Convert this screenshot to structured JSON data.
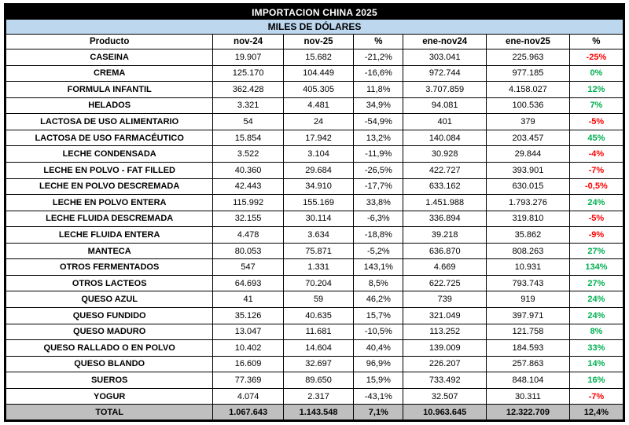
{
  "colors": {
    "positive": "#00B050",
    "negative": "#FF0000",
    "title_bg": "#000000",
    "subtitle_bg": "#BDD7EE",
    "total_bg": "#BFBFBF"
  },
  "chart_data": {
    "type": "table",
    "title": "IMPORTACION CHINA 2025",
    "subtitle": "MILES DE DÓLARES",
    "headers": [
      "Producto",
      "nov-24",
      "nov-25",
      "%",
      "ene-nov24",
      "ene-nov25",
      "%"
    ],
    "rows": [
      {
        "producto": "CASEINA",
        "nov24": "19.907",
        "nov25": "15.682",
        "pct1": "-21,2%",
        "ene_nov24": "303.041",
        "ene_nov25": "225.963",
        "pct2": "-25%"
      },
      {
        "producto": "CREMA",
        "nov24": "125.170",
        "nov25": "104.449",
        "pct1": "-16,6%",
        "ene_nov24": "972.744",
        "ene_nov25": "977.185",
        "pct2": "0%"
      },
      {
        "producto": "FORMULA INFANTIL",
        "nov24": "362.428",
        "nov25": "405.305",
        "pct1": "11,8%",
        "ene_nov24": "3.707.859",
        "ene_nov25": "4.158.027",
        "pct2": "12%"
      },
      {
        "producto": "HELADOS",
        "nov24": "3.321",
        "nov25": "4.481",
        "pct1": "34,9%",
        "ene_nov24": "94.081",
        "ene_nov25": "100.536",
        "pct2": "7%"
      },
      {
        "producto": "LACTOSA DE USO ALIMENTARIO",
        "nov24": "54",
        "nov25": "24",
        "pct1": "-54,9%",
        "ene_nov24": "401",
        "ene_nov25": "379",
        "pct2": "-5%"
      },
      {
        "producto": "LACTOSA DE USO FARMACÉUTICO",
        "nov24": "15.854",
        "nov25": "17.942",
        "pct1": "13,2%",
        "ene_nov24": "140.084",
        "ene_nov25": "203.457",
        "pct2": "45%"
      },
      {
        "producto": "LECHE CONDENSADA",
        "nov24": "3.522",
        "nov25": "3.104",
        "pct1": "-11,9%",
        "ene_nov24": "30.928",
        "ene_nov25": "29.844",
        "pct2": "-4%"
      },
      {
        "producto": "LECHE EN POLVO - FAT FILLED",
        "nov24": "40.360",
        "nov25": "29.684",
        "pct1": "-26,5%",
        "ene_nov24": "422.727",
        "ene_nov25": "393.901",
        "pct2": "-7%"
      },
      {
        "producto": "LECHE EN POLVO DESCREMADA",
        "nov24": "42.443",
        "nov25": "34.910",
        "pct1": "-17,7%",
        "ene_nov24": "633.162",
        "ene_nov25": "630.015",
        "pct2": "-0,5%"
      },
      {
        "producto": "LECHE EN POLVO ENTERA",
        "nov24": "115.992",
        "nov25": "155.169",
        "pct1": "33,8%",
        "ene_nov24": "1.451.988",
        "ene_nov25": "1.793.276",
        "pct2": "24%"
      },
      {
        "producto": "LECHE FLUIDA DESCREMADA",
        "nov24": "32.155",
        "nov25": "30.114",
        "pct1": "-6,3%",
        "ene_nov24": "336.894",
        "ene_nov25": "319.810",
        "pct2": "-5%"
      },
      {
        "producto": "LECHE FLUIDA ENTERA",
        "nov24": "4.478",
        "nov25": "3.634",
        "pct1": "-18,8%",
        "ene_nov24": "39.218",
        "ene_nov25": "35.862",
        "pct2": "-9%"
      },
      {
        "producto": "MANTECA",
        "nov24": "80.053",
        "nov25": "75.871",
        "pct1": "-5,2%",
        "ene_nov24": "636.870",
        "ene_nov25": "808.263",
        "pct2": "27%"
      },
      {
        "producto": "OTROS FERMENTADOS",
        "nov24": "547",
        "nov25": "1.331",
        "pct1": "143,1%",
        "ene_nov24": "4.669",
        "ene_nov25": "10.931",
        "pct2": "134%"
      },
      {
        "producto": "OTROS LACTEOS",
        "nov24": "64.693",
        "nov25": "70.204",
        "pct1": "8,5%",
        "ene_nov24": "622.725",
        "ene_nov25": "793.743",
        "pct2": "27%"
      },
      {
        "producto": "QUESO AZUL",
        "nov24": "41",
        "nov25": "59",
        "pct1": "46,2%",
        "ene_nov24": "739",
        "ene_nov25": "919",
        "pct2": "24%"
      },
      {
        "producto": "QUESO FUNDIDO",
        "nov24": "35.126",
        "nov25": "40.635",
        "pct1": "15,7%",
        "ene_nov24": "321.049",
        "ene_nov25": "397.971",
        "pct2": "24%"
      },
      {
        "producto": "QUESO MADURO",
        "nov24": "13.047",
        "nov25": "11.681",
        "pct1": "-10,5%",
        "ene_nov24": "113.252",
        "ene_nov25": "121.758",
        "pct2": "8%"
      },
      {
        "producto": "QUESO RALLADO O EN POLVO",
        "nov24": "10.402",
        "nov25": "14.604",
        "pct1": "40,4%",
        "ene_nov24": "139.009",
        "ene_nov25": "184.593",
        "pct2": "33%"
      },
      {
        "producto": "QUESO BLANDO",
        "nov24": "16.609",
        "nov25": "32.697",
        "pct1": "96,9%",
        "ene_nov24": "226.207",
        "ene_nov25": "257.863",
        "pct2": "14%"
      },
      {
        "producto": "SUEROS",
        "nov24": "77.369",
        "nov25": "89.650",
        "pct1": "15,9%",
        "ene_nov24": "733.492",
        "ene_nov25": "848.104",
        "pct2": "16%"
      },
      {
        "producto": "YOGUR",
        "nov24": "4.074",
        "nov25": "2.317",
        "pct1": "-43,1%",
        "ene_nov24": "32.507",
        "ene_nov25": "30.311",
        "pct2": "-7%"
      }
    ],
    "total": {
      "producto": "TOTAL",
      "nov24": "1.067.643",
      "nov25": "1.143.548",
      "pct1": "7,1%",
      "ene_nov24": "10.963.645",
      "ene_nov25": "12.322.709",
      "pct2": "12,4%"
    }
  }
}
